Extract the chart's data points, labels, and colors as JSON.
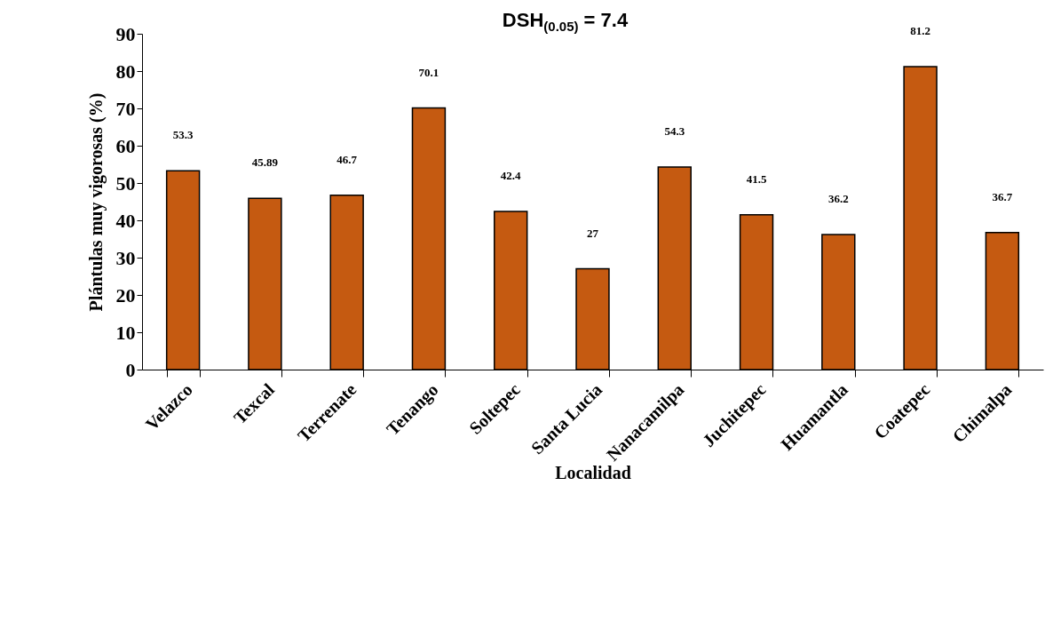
{
  "chart_data": {
    "type": "bar",
    "xlabel": "Localidad",
    "ylabel": "Plántulas muy vigorosas (%)",
    "annotations": [
      "DSH$_{(0.05)}$ = 7.4"
    ],
    "categories": [
      "Velazco",
      "Texcal",
      "Terrenate",
      "Tenango",
      "Soltepec",
      "Santa Lucia",
      "Nanacamilpa",
      "Juchitepec",
      "Huamantla",
      "Coatepec",
      "Chimalpa"
    ],
    "values": [
      53.3,
      45.89,
      46.7,
      70.1,
      42.4,
      27,
      54.3,
      41.5,
      36.2,
      81.2,
      36.7
    ],
    "color": "#c55a11",
    "data_labels": true,
    "grid": false,
    "ylim": [
      0,
      90
    ],
    "yticks": [
      0,
      10,
      20,
      30,
      40,
      50,
      60,
      70,
      80,
      90
    ]
  }
}
